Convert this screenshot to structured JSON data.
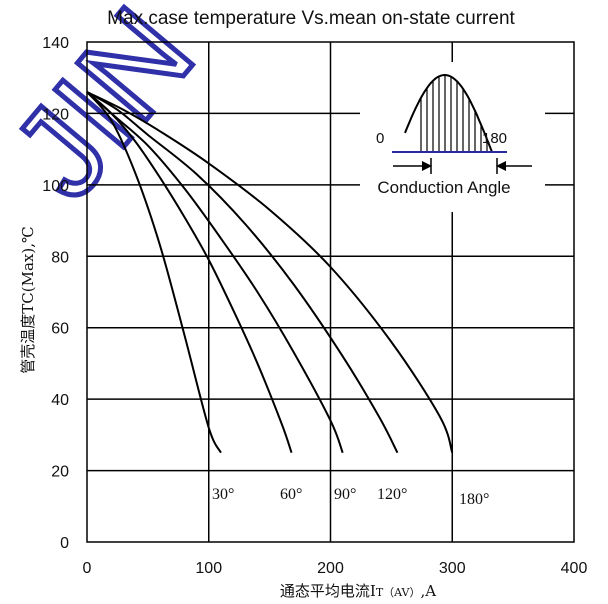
{
  "chart_data": {
    "type": "line",
    "title": "Max.case temperature Vs.mean on-state current",
    "ylabel": "管壳温度TC(Max),℃",
    "xlabel": {
      "prefix": "通态平均电流I",
      "subscript": "T（AV）",
      "suffix": ",A"
    },
    "xlim": [
      0,
      400
    ],
    "ylim": [
      0,
      140
    ],
    "x_ticks": [
      0,
      100,
      200,
      300,
      400
    ],
    "y_ticks": [
      0,
      20,
      40,
      60,
      80,
      100,
      120,
      140
    ],
    "grid": true,
    "series": [
      {
        "name": "30°",
        "x": [
          0,
          20,
          40,
          60,
          80,
          100,
          110
        ],
        "y": [
          126,
          118,
          103,
          83,
          58,
          32,
          25
        ]
      },
      {
        "name": "60°",
        "x": [
          0,
          20,
          40,
          60,
          80,
          100,
          120,
          140,
          160,
          168
        ],
        "y": [
          126,
          120,
          112,
          102,
          91,
          79,
          65,
          50,
          33,
          25
        ]
      },
      {
        "name": "90°",
        "x": [
          0,
          20,
          50,
          80,
          110,
          140,
          170,
          200,
          210
        ],
        "y": [
          126,
          120,
          111,
          99,
          85,
          70,
          53,
          34,
          25
        ]
      },
      {
        "name": "120°",
        "x": [
          0,
          25,
          50,
          90,
          130,
          170,
          210,
          240,
          255
        ],
        "y": [
          126,
          121,
          114,
          103,
          89,
          72,
          52,
          35,
          25
        ]
      },
      {
        "name": "180°",
        "x": [
          0,
          30,
          60,
          100,
          150,
          200,
          250,
          290,
          300
        ],
        "y": [
          126,
          121,
          115,
          106,
          93,
          77,
          56,
          35,
          25
        ]
      }
    ],
    "inset": {
      "label_start": "0",
      "label_end": "180",
      "caption": "Conduction Angle"
    },
    "watermark": "JIN"
  }
}
